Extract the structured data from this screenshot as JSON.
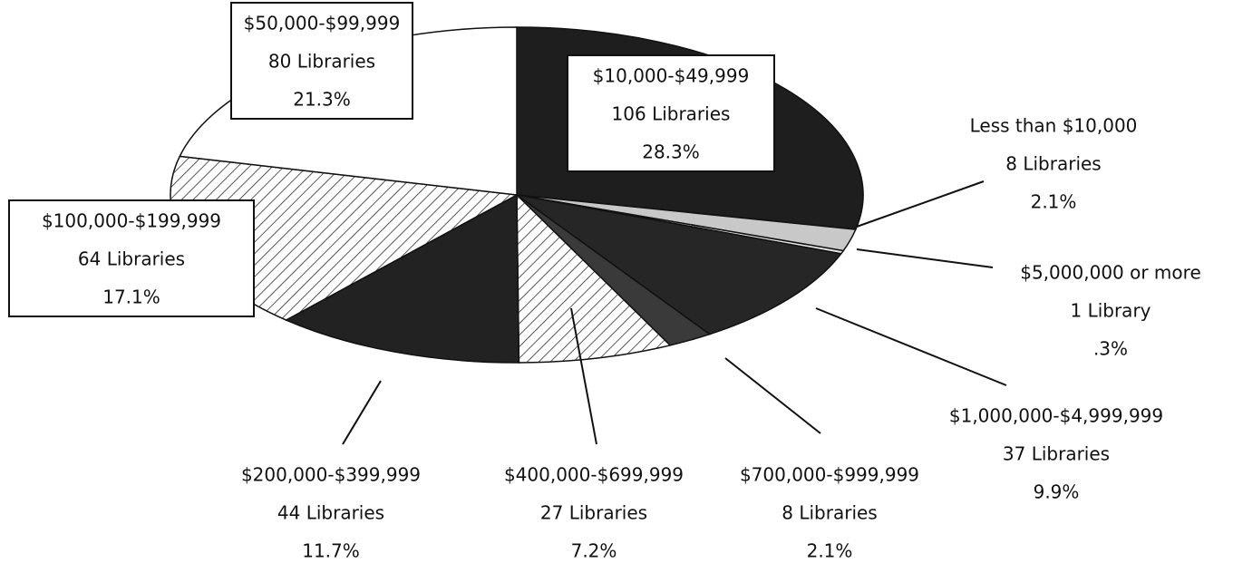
{
  "chart_data": {
    "type": "pie",
    "categories": [
      "$10,000-$49,999",
      "Less than $10,000",
      "$5,000,000 or more",
      "$1,000,000-$4,999,999",
      "$700,000-$999,999",
      "$400,000-$699,999",
      "$200,000-$399,999",
      "$100,000-$199,999",
      "$50,000-$99,999"
    ],
    "count_labels": [
      "106 Libraries",
      "8 Libraries",
      "1 Library",
      "37 Libraries",
      "8 Libraries",
      "27 Libraries",
      "44 Libraries",
      "64 Libraries",
      "80 Libraries"
    ],
    "values": [
      28.3,
      2.1,
      0.3,
      9.9,
      2.1,
      7.2,
      11.7,
      17.1,
      21.3
    ],
    "value_labels": [
      "28.3%",
      "2.1%",
      ".3%",
      "9.9%",
      "2.1%",
      "7.2%",
      "11.7%",
      "17.1%",
      "21.3%"
    ],
    "colors": [
      "#1e1e1e",
      "#c8c8c8",
      "#e6e6e6",
      "#262626",
      "#3a3a3a",
      "#ffffff",
      "#222222",
      "#ffffff",
      "#ffffff"
    ],
    "hatched": [
      false,
      false,
      false,
      false,
      false,
      true,
      false,
      true,
      false
    ]
  }
}
